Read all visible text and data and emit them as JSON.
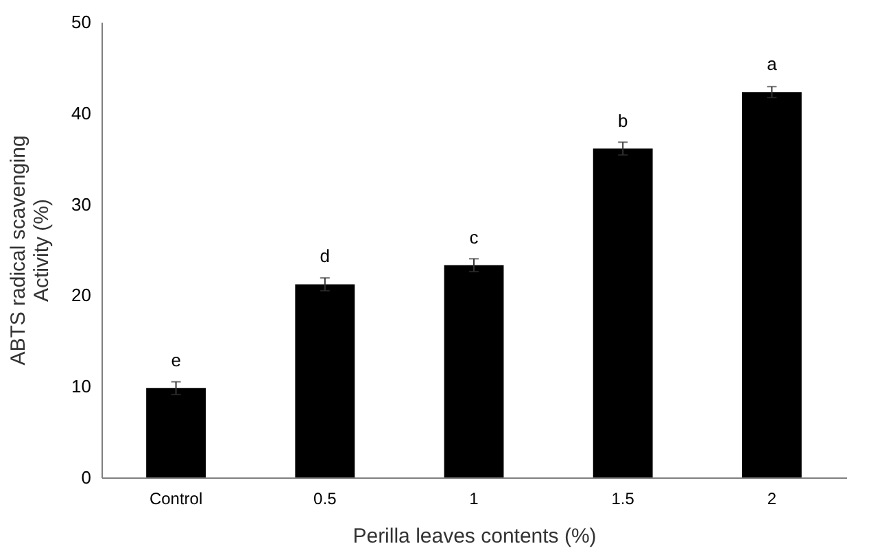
{
  "chart_data": {
    "type": "bar",
    "xlabel": "Perilla leaves contents (%)",
    "ylabel": "ABTS radical scavenging Activity (%)",
    "categories": [
      "Control",
      "0.5",
      "1",
      "1.5",
      "2"
    ],
    "values": [
      9.8,
      21.2,
      23.3,
      36.1,
      42.3
    ],
    "errors": [
      0.7,
      0.7,
      0.7,
      0.7,
      0.6
    ],
    "color": "#000000",
    "ylim": [
      0,
      50
    ],
    "yticks": [
      0,
      10,
      20,
      30,
      40,
      50
    ],
    "grid": false,
    "annotations": [
      {
        "text": "e",
        "x": "Control",
        "y": 9.8
      },
      {
        "text": "d",
        "x": "0.5",
        "y": 21.2
      },
      {
        "text": "c",
        "x": "1",
        "y": 23.3
      },
      {
        "text": "b",
        "x": "1.5",
        "y": 36.1
      },
      {
        "text": "a",
        "x": "2",
        "y": 42.3
      }
    ]
  }
}
